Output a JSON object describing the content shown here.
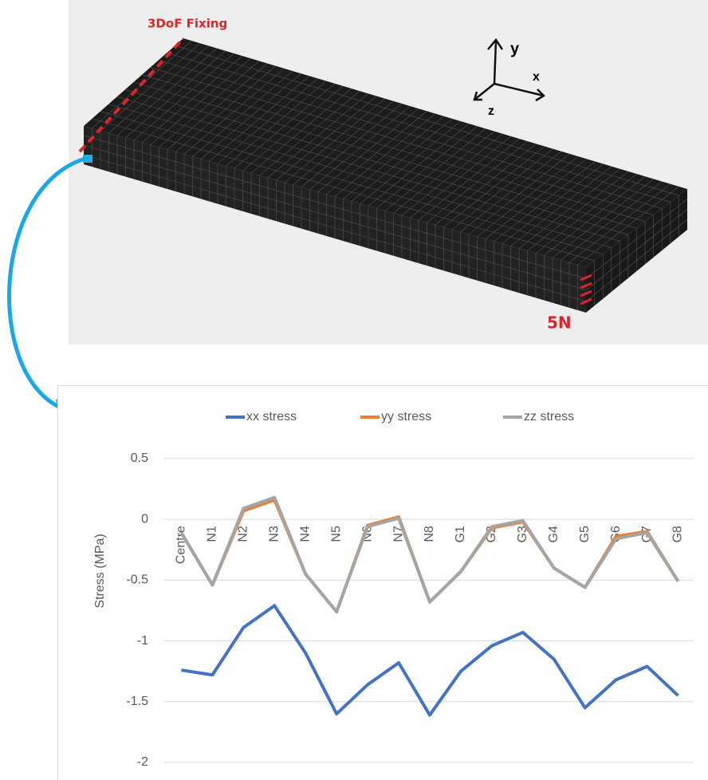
{
  "figure": {
    "annotations": {
      "fixing": "3DoF Fixing",
      "load": "5N",
      "axis_y": "y",
      "axis_x": "x",
      "axis_z": "z"
    }
  },
  "chart_data": {
    "type": "line",
    "y_label": "Stress (MPa)",
    "categories": [
      "Centre",
      "N1",
      "N2",
      "N3",
      "N4",
      "N5",
      "N6",
      "N7",
      "N8",
      "G1",
      "G2",
      "G3",
      "G4",
      "G5",
      "G6",
      "G7",
      "G8"
    ],
    "series": [
      {
        "name": "xx stress",
        "color": "#4472c4",
        "values": [
          -1.24,
          -1.28,
          -0.89,
          -0.71,
          -1.1,
          -1.6,
          -1.36,
          -1.18,
          -1.61,
          -1.25,
          -1.04,
          -0.93,
          -1.15,
          -1.55,
          -1.32,
          -1.21,
          -1.45
        ]
      },
      {
        "name": "yy stress",
        "color": "#ed7d31",
        "values": [
          -0.11,
          -0.54,
          0.07,
          0.16,
          -0.45,
          -0.76,
          -0.05,
          0.02,
          -0.68,
          -0.43,
          -0.07,
          -0.02,
          -0.4,
          -0.56,
          -0.14,
          -0.1,
          -0.51
        ]
      },
      {
        "name": "zz stress",
        "color": "#a5a5a5",
        "values": [
          -0.11,
          -0.54,
          0.09,
          0.18,
          -0.45,
          -0.76,
          -0.06,
          0.01,
          -0.68,
          -0.43,
          -0.06,
          -0.01,
          -0.4,
          -0.56,
          -0.16,
          -0.11,
          -0.51
        ]
      }
    ],
    "ylim": [
      -2,
      0.5
    ],
    "yticks": [
      -2,
      -1.5,
      -1,
      -0.5,
      0,
      0.5
    ],
    "grid": true,
    "legend": "top"
  }
}
